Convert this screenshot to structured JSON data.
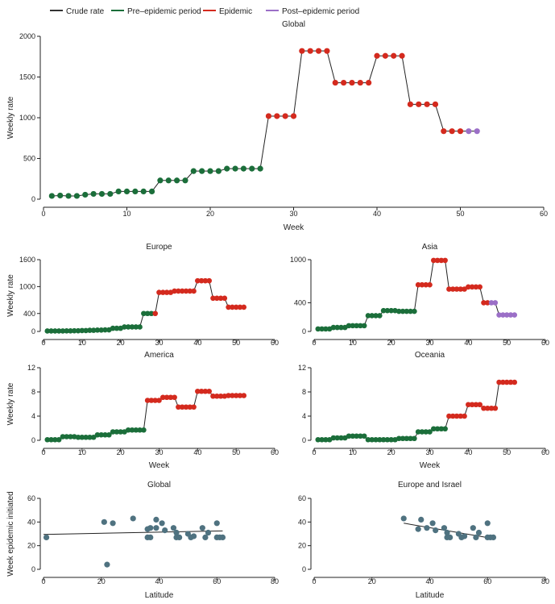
{
  "legend": {
    "items": [
      {
        "label": "Crude rate",
        "color": "#333333",
        "kind": "line"
      },
      {
        "label": "Pre–epidemic period",
        "color": "#1b6e3a",
        "kind": "line"
      },
      {
        "label": "Epidemic",
        "color": "#d42a1e",
        "kind": "line"
      },
      {
        "label": "Post–epidemic period",
        "color": "#9b6fc7",
        "kind": "line"
      }
    ]
  },
  "colors": {
    "pre": "#1b6e3a",
    "epi": "#d42a1e",
    "post": "#9b6fc7",
    "line": "#222222",
    "scatter": "#4f7280"
  },
  "chart_data": [
    {
      "id": "global",
      "type": "line",
      "title": "Global",
      "xlabel": "Week",
      "ylabel": "Weekly rate",
      "xlim": [
        0,
        60
      ],
      "ylim": [
        0,
        2000
      ],
      "xticks": [
        0,
        10,
        20,
        30,
        40,
        50,
        60
      ],
      "yticks": [
        0,
        500,
        1000,
        1500,
        2000
      ],
      "x": [
        1,
        2,
        3,
        4,
        5,
        6,
        7,
        8,
        9,
        10,
        11,
        12,
        13,
        14,
        15,
        16,
        17,
        18,
        19,
        20,
        21,
        22,
        23,
        24,
        25,
        26,
        27,
        28,
        29,
        30,
        31,
        32,
        33,
        34,
        35,
        36,
        37,
        38,
        39,
        40,
        41,
        42,
        43,
        44,
        45,
        46,
        47,
        48,
        49,
        50,
        51,
        52
      ],
      "values": [
        40,
        45,
        40,
        40,
        55,
        65,
        65,
        65,
        95,
        95,
        95,
        95,
        95,
        230,
        230,
        230,
        230,
        345,
        345,
        345,
        345,
        375,
        375,
        375,
        375,
        375,
        1020,
        1020,
        1020,
        1020,
        1820,
        1820,
        1820,
        1820,
        1430,
        1430,
        1430,
        1430,
        1430,
        1760,
        1760,
        1760,
        1760,
        1165,
        1165,
        1165,
        1165,
        835,
        835,
        835,
        835,
        835
      ],
      "phase": [
        "pre",
        "pre",
        "pre",
        "pre",
        "pre",
        "pre",
        "pre",
        "pre",
        "pre",
        "pre",
        "pre",
        "pre",
        "pre",
        "pre",
        "pre",
        "pre",
        "pre",
        "pre",
        "pre",
        "pre",
        "pre",
        "pre",
        "pre",
        "pre",
        "pre",
        "pre",
        "epi",
        "epi",
        "epi",
        "epi",
        "epi",
        "epi",
        "epi",
        "epi",
        "epi",
        "epi",
        "epi",
        "epi",
        "epi",
        "epi",
        "epi",
        "epi",
        "epi",
        "epi",
        "epi",
        "epi",
        "epi",
        "epi",
        "epi",
        "epi",
        "post",
        "post"
      ]
    },
    {
      "id": "europe",
      "type": "line",
      "title": "Europe",
      "xlabel": "",
      "ylabel": "Weekly rate",
      "xlim": [
        0,
        60
      ],
      "ylim": [
        0,
        1600
      ],
      "xticks": [
        0,
        10,
        20,
        30,
        40,
        50,
        60
      ],
      "yticks": [
        0,
        400,
        1000,
        1600
      ],
      "x": [
        1,
        2,
        3,
        4,
        5,
        6,
        7,
        8,
        9,
        10,
        11,
        12,
        13,
        14,
        15,
        16,
        17,
        18,
        19,
        20,
        21,
        22,
        23,
        24,
        25,
        26,
        27,
        28,
        29,
        30,
        31,
        32,
        33,
        34,
        35,
        36,
        37,
        38,
        39,
        40,
        41,
        42,
        43,
        44,
        45,
        46,
        47,
        48,
        49,
        50,
        51,
        52
      ],
      "values": [
        10,
        10,
        10,
        10,
        10,
        12,
        12,
        15,
        15,
        20,
        20,
        25,
        25,
        30,
        30,
        35,
        35,
        70,
        70,
        70,
        100,
        100,
        100,
        100,
        100,
        400,
        400,
        400,
        400,
        870,
        870,
        870,
        870,
        900,
        900,
        900,
        900,
        900,
        900,
        1130,
        1130,
        1130,
        1130,
        740,
        740,
        740,
        740,
        540,
        540,
        540,
        540,
        540
      ],
      "phase": [
        "pre",
        "pre",
        "pre",
        "pre",
        "pre",
        "pre",
        "pre",
        "pre",
        "pre",
        "pre",
        "pre",
        "pre",
        "pre",
        "pre",
        "pre",
        "pre",
        "pre",
        "pre",
        "pre",
        "pre",
        "pre",
        "pre",
        "pre",
        "pre",
        "pre",
        "pre",
        "pre",
        "pre",
        "epi",
        "epi",
        "epi",
        "epi",
        "epi",
        "epi",
        "epi",
        "epi",
        "epi",
        "epi",
        "epi",
        "epi",
        "epi",
        "epi",
        "epi",
        "epi",
        "epi",
        "epi",
        "epi",
        "epi",
        "epi",
        "epi",
        "epi",
        "epi"
      ]
    },
    {
      "id": "asia",
      "type": "line",
      "title": "Asia",
      "xlabel": "",
      "ylabel": "",
      "xlim": [
        0,
        60
      ],
      "ylim": [
        0,
        1000
      ],
      "xticks": [
        0,
        10,
        20,
        30,
        40,
        50,
        60
      ],
      "yticks": [
        0,
        400,
        1000
      ],
      "x": [
        1,
        2,
        3,
        4,
        5,
        6,
        7,
        8,
        9,
        10,
        11,
        12,
        13,
        14,
        15,
        16,
        17,
        18,
        19,
        20,
        21,
        22,
        23,
        24,
        25,
        26,
        27,
        28,
        29,
        30,
        31,
        32,
        33,
        34,
        35,
        36,
        37,
        38,
        39,
        40,
        41,
        42,
        43,
        44,
        45,
        46,
        47,
        48,
        49,
        50,
        51,
        52
      ],
      "values": [
        35,
        35,
        35,
        35,
        55,
        55,
        55,
        55,
        80,
        80,
        80,
        80,
        80,
        220,
        220,
        220,
        220,
        290,
        290,
        290,
        290,
        280,
        280,
        280,
        280,
        280,
        650,
        650,
        650,
        650,
        990,
        990,
        990,
        990,
        590,
        590,
        590,
        590,
        590,
        620,
        620,
        620,
        620,
        400,
        400,
        400,
        400,
        230,
        230,
        230,
        230,
        230
      ],
      "phase": [
        "pre",
        "pre",
        "pre",
        "pre",
        "pre",
        "pre",
        "pre",
        "pre",
        "pre",
        "pre",
        "pre",
        "pre",
        "pre",
        "pre",
        "pre",
        "pre",
        "pre",
        "pre",
        "pre",
        "pre",
        "pre",
        "pre",
        "pre",
        "pre",
        "pre",
        "pre",
        "epi",
        "epi",
        "epi",
        "epi",
        "epi",
        "epi",
        "epi",
        "epi",
        "epi",
        "epi",
        "epi",
        "epi",
        "epi",
        "epi",
        "epi",
        "epi",
        "epi",
        "epi",
        "epi",
        "post",
        "post",
        "post",
        "post",
        "post",
        "post",
        "post"
      ]
    },
    {
      "id": "america",
      "type": "line",
      "title": "America",
      "xlabel": "Week",
      "ylabel": "Weekly rate",
      "xlim": [
        0,
        60
      ],
      "ylim": [
        0,
        12
      ],
      "xticks": [
        0,
        10,
        20,
        30,
        40,
        50,
        60
      ],
      "yticks": [
        0,
        4,
        8,
        12
      ],
      "x": [
        1,
        2,
        3,
        4,
        5,
        6,
        7,
        8,
        9,
        10,
        11,
        12,
        13,
        14,
        15,
        16,
        17,
        18,
        19,
        20,
        21,
        22,
        23,
        24,
        25,
        26,
        27,
        28,
        29,
        30,
        31,
        32,
        33,
        34,
        35,
        36,
        37,
        38,
        39,
        40,
        41,
        42,
        43,
        44,
        45,
        46,
        47,
        48,
        49,
        50,
        51,
        52
      ],
      "values": [
        0.1,
        0.1,
        0.1,
        0.1,
        0.6,
        0.6,
        0.6,
        0.6,
        0.5,
        0.5,
        0.5,
        0.5,
        0.5,
        0.9,
        0.9,
        0.9,
        0.9,
        1.4,
        1.4,
        1.4,
        1.4,
        1.7,
        1.7,
        1.7,
        1.7,
        1.7,
        6.6,
        6.6,
        6.6,
        6.6,
        7.1,
        7.1,
        7.1,
        7.1,
        5.5,
        5.5,
        5.5,
        5.5,
        5.5,
        8.1,
        8.1,
        8.1,
        8.1,
        7.3,
        7.3,
        7.3,
        7.3,
        7.4,
        7.4,
        7.4,
        7.4,
        7.4
      ],
      "phase": [
        "pre",
        "pre",
        "pre",
        "pre",
        "pre",
        "pre",
        "pre",
        "pre",
        "pre",
        "pre",
        "pre",
        "pre",
        "pre",
        "pre",
        "pre",
        "pre",
        "pre",
        "pre",
        "pre",
        "pre",
        "pre",
        "pre",
        "pre",
        "pre",
        "pre",
        "pre",
        "epi",
        "epi",
        "epi",
        "epi",
        "epi",
        "epi",
        "epi",
        "epi",
        "epi",
        "epi",
        "epi",
        "epi",
        "epi",
        "epi",
        "epi",
        "epi",
        "epi",
        "epi",
        "epi",
        "epi",
        "epi",
        "epi",
        "epi",
        "epi",
        "epi",
        "epi"
      ]
    },
    {
      "id": "oceania",
      "type": "line",
      "title": "Oceania",
      "xlabel": "Week",
      "ylabel": "",
      "xlim": [
        0,
        60
      ],
      "ylim": [
        0,
        12
      ],
      "xticks": [
        0,
        10,
        20,
        30,
        40,
        50,
        60
      ],
      "yticks": [
        0,
        4,
        8,
        12
      ],
      "x": [
        1,
        2,
        3,
        4,
        5,
        6,
        7,
        8,
        9,
        10,
        11,
        12,
        13,
        14,
        15,
        16,
        17,
        18,
        19,
        20,
        21,
        22,
        23,
        24,
        25,
        26,
        27,
        28,
        29,
        30,
        31,
        32,
        33,
        34,
        35,
        36,
        37,
        38,
        39,
        40,
        41,
        42,
        43,
        44,
        45,
        46,
        47,
        48,
        49,
        50,
        51,
        52
      ],
      "values": [
        0.1,
        0.1,
        0.1,
        0.1,
        0.4,
        0.4,
        0.4,
        0.4,
        0.7,
        0.7,
        0.7,
        0.7,
        0.7,
        0.1,
        0.1,
        0.1,
        0.1,
        0.1,
        0.1,
        0.1,
        0.1,
        0.3,
        0.3,
        0.3,
        0.3,
        0.3,
        1.4,
        1.4,
        1.4,
        1.4,
        1.9,
        1.9,
        1.9,
        1.9,
        4.0,
        4.0,
        4.0,
        4.0,
        4.0,
        5.9,
        5.9,
        5.9,
        5.9,
        5.3,
        5.3,
        5.3,
        5.3,
        9.6,
        9.6,
        9.6,
        9.6,
        9.6
      ],
      "phase": [
        "pre",
        "pre",
        "pre",
        "pre",
        "pre",
        "pre",
        "pre",
        "pre",
        "pre",
        "pre",
        "pre",
        "pre",
        "pre",
        "pre",
        "pre",
        "pre",
        "pre",
        "pre",
        "pre",
        "pre",
        "pre",
        "pre",
        "pre",
        "pre",
        "pre",
        "pre",
        "pre",
        "pre",
        "pre",
        "pre",
        "pre",
        "pre",
        "pre",
        "pre",
        "epi",
        "epi",
        "epi",
        "epi",
        "epi",
        "epi",
        "epi",
        "epi",
        "epi",
        "epi",
        "epi",
        "epi",
        "epi",
        "epi",
        "epi",
        "epi",
        "epi",
        "epi"
      ]
    },
    {
      "id": "scatter-global",
      "type": "scatter",
      "title": "Global",
      "xlabel": "Latitude",
      "ylabel": "Week epidemic initiated",
      "xlim": [
        0,
        80
      ],
      "ylim": [
        0,
        60
      ],
      "xticks": [
        0,
        20,
        40,
        60,
        80
      ],
      "yticks": [
        0,
        20,
        40,
        60
      ],
      "x": [
        1,
        21,
        22,
        24,
        31,
        36,
        36,
        37,
        37,
        39,
        39,
        41,
        42,
        45,
        46,
        46,
        47,
        50,
        51,
        52,
        55,
        56,
        57,
        60,
        60,
        61,
        62
      ],
      "y": [
        27,
        40,
        4,
        39,
        43,
        34,
        27,
        27,
        35,
        42,
        35,
        39,
        33,
        35,
        31,
        27,
        27,
        30,
        27,
        28,
        35,
        27,
        31,
        39,
        27,
        27,
        27
      ],
      "fit": {
        "x": [
          0,
          62
        ],
        "y": [
          29.5,
          32.5
        ]
      }
    },
    {
      "id": "scatter-europe",
      "type": "scatter",
      "title": "Europe and Israel",
      "xlabel": "Latitude",
      "ylabel": "",
      "xlim": [
        0,
        80
      ],
      "ylim": [
        0,
        60
      ],
      "xticks": [
        0,
        20,
        40,
        60,
        80
      ],
      "yticks": [
        0,
        20,
        40,
        60
      ],
      "x": [
        31,
        36,
        37,
        39,
        41,
        42,
        45,
        46,
        46,
        47,
        50,
        51,
        52,
        55,
        56,
        57,
        60,
        60,
        61,
        62
      ],
      "y": [
        43,
        34,
        42,
        35,
        39,
        33,
        35,
        31,
        27,
        27,
        30,
        27,
        28,
        35,
        27,
        31,
        39,
        27,
        27,
        27
      ],
      "fit": {
        "x": [
          31,
          62
        ],
        "y": [
          39,
          26
        ]
      }
    }
  ]
}
